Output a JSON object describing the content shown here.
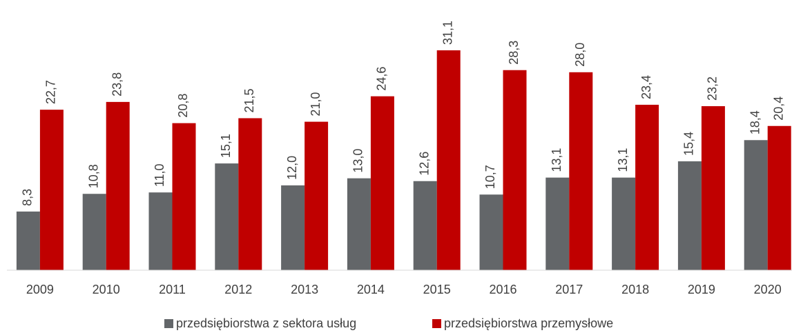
{
  "chart_data": {
    "type": "bar",
    "categories": [
      "2009",
      "2010",
      "2011",
      "2012",
      "2013",
      "2014",
      "2015",
      "2016",
      "2017",
      "2018",
      "2019",
      "2020"
    ],
    "series": [
      {
        "name": "przedsiębiorstwa z sektora usług",
        "color": "#636669",
        "values": [
          8.3,
          10.8,
          11.0,
          15.1,
          12.0,
          13.0,
          12.6,
          10.7,
          13.1,
          13.1,
          15.4,
          18.4
        ],
        "value_labels": [
          "8,3",
          "10,8",
          "11,0",
          "15,1",
          "12,0",
          "13,0",
          "12,6",
          "10,7",
          "13,1",
          "13,1",
          "15,4",
          "18,4"
        ]
      },
      {
        "name": "przedsiębiorstwa przemysłowe",
        "color": "#c00000",
        "values": [
          22.7,
          23.8,
          20.8,
          21.5,
          21.0,
          24.6,
          31.1,
          28.3,
          28.0,
          23.4,
          23.2,
          20.4
        ],
        "value_labels": [
          "22,7",
          "23,8",
          "20,8",
          "21,5",
          "21,0",
          "24,6",
          "31,1",
          "28,3",
          "28,0",
          "23,4",
          "23,2",
          "20,4"
        ]
      }
    ],
    "ylim": [
      0,
      35
    ]
  }
}
